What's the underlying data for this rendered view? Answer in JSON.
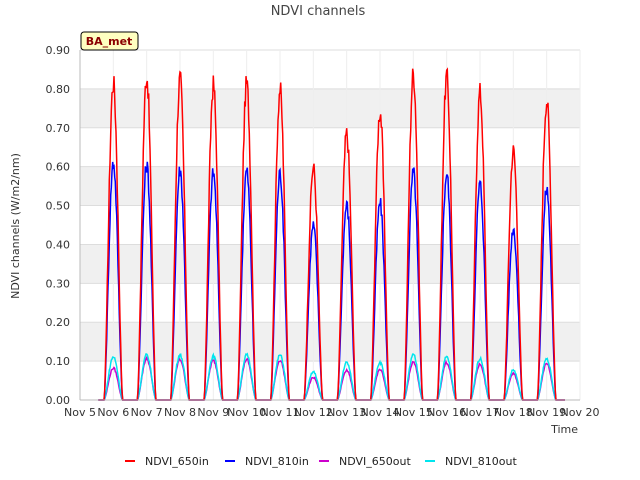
{
  "chart_data": {
    "type": "line",
    "title": "NDVI channels",
    "xlabel": "Time",
    "ylabel": "NDVI channels (W/m2/nm)",
    "badge": "BA_met",
    "xlim": [
      5,
      20
    ],
    "ylim": [
      0,
      0.9
    ],
    "x_ticks": [
      5,
      6,
      7,
      8,
      9,
      10,
      11,
      12,
      13,
      14,
      15,
      16,
      17,
      18,
      19,
      20
    ],
    "x_tick_labels": [
      "Nov 5",
      "Nov 6",
      "Nov 7",
      "Nov 8",
      "Nov 9",
      "Nov 10",
      "Nov 11",
      "Nov 12",
      "Nov 13",
      "Nov 14",
      "Nov 15",
      "Nov 16",
      "Nov 17",
      "Nov 18",
      "Nov 19",
      "Nov 20"
    ],
    "y_ticks": [
      0,
      0.1,
      0.2,
      0.3,
      0.4,
      0.5,
      0.6,
      0.7,
      0.8,
      0.9
    ],
    "y_tick_labels": [
      "0.00",
      "0.10",
      "0.20",
      "0.30",
      "0.40",
      "0.50",
      "0.60",
      "0.70",
      "0.80",
      "0.90"
    ],
    "grid": true,
    "legend_position": "bottom",
    "daily_peak_day_of_month": [
      6,
      7,
      8,
      9,
      10,
      11,
      12,
      13,
      14,
      15,
      16,
      17,
      18,
      19
    ],
    "series": [
      {
        "name": "NDVI_650in",
        "color": "#ff0000",
        "peaks": [
          0.845,
          0.865,
          0.855,
          0.838,
          0.843,
          0.827,
          0.62,
          0.71,
          0.77,
          0.87,
          0.86,
          0.82,
          0.665,
          0.8
        ]
      },
      {
        "name": "NDVI_810in",
        "color": "#0000ff",
        "peaks": [
          0.633,
          0.627,
          0.614,
          0.605,
          0.611,
          0.604,
          0.465,
          0.52,
          0.525,
          0.607,
          0.603,
          0.575,
          0.458,
          0.563
        ]
      },
      {
        "name": "NDVI_650out",
        "color": "#cc00cc",
        "peaks": [
          0.085,
          0.11,
          0.108,
          0.105,
          0.108,
          0.106,
          0.06,
          0.08,
          0.08,
          0.1,
          0.1,
          0.095,
          0.07,
          0.098
        ]
      },
      {
        "name": "NDVI_810out",
        "color": "#00e5ee",
        "peaks": [
          0.115,
          0.12,
          0.12,
          0.117,
          0.12,
          0.12,
          0.075,
          0.1,
          0.1,
          0.12,
          0.115,
          0.11,
          0.08,
          0.11
        ]
      }
    ]
  }
}
